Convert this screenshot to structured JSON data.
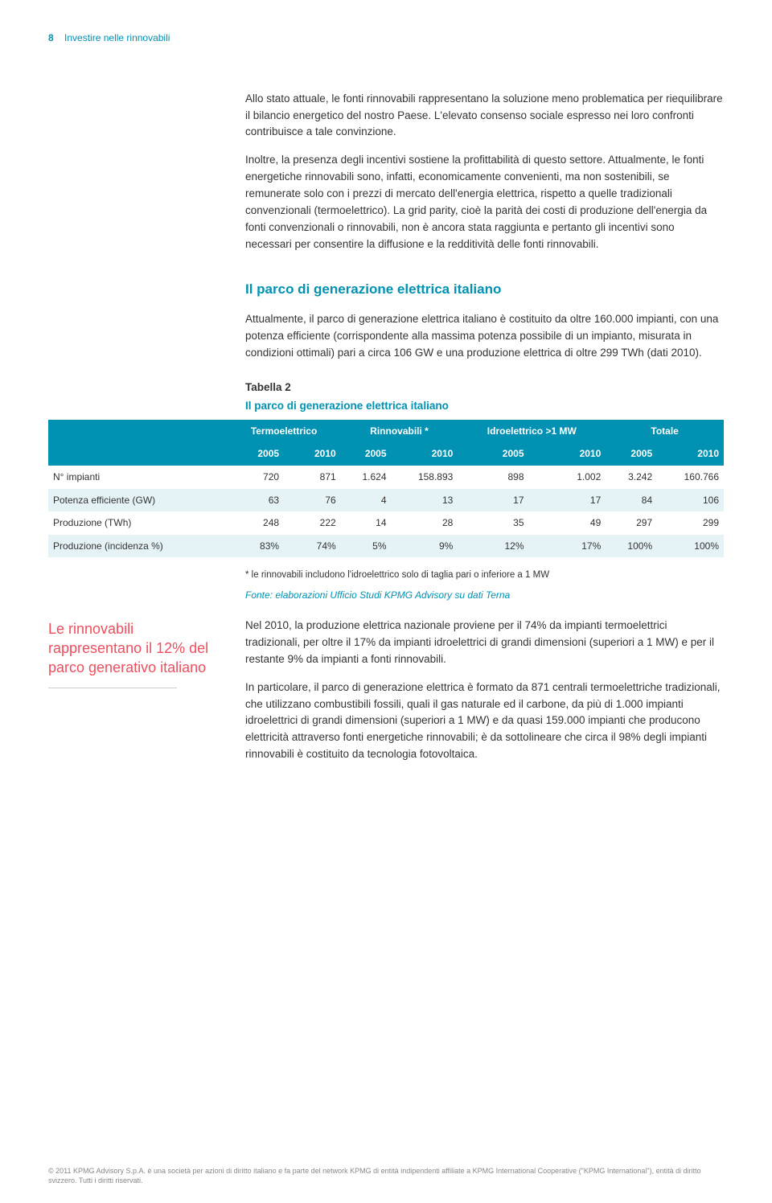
{
  "header": {
    "page_number": "8",
    "running_title": "Investire nelle rinnovabili"
  },
  "intro": {
    "p1": "Allo stato attuale, le fonti rinnovabili rappresentano la soluzione meno problematica per riequilibrare il bilancio energetico del nostro Paese. L'elevato consenso sociale espresso nei loro confronti contribuisce a tale convinzione.",
    "p2": "Inoltre, la presenza degli incentivi sostiene la profittabilità di questo settore. Attualmente, le fonti energetiche rinnovabili sono, infatti, economicamente convenienti, ma non sostenibili, se remunerate solo con i prezzi di mercato dell'energia elettrica, rispetto a quelle tradizionali convenzionali (termoelettrico). La grid parity, cioè la parità dei costi di produzione dell'energia da fonti convenzionali o rinnovabili, non è ancora stata raggiunta e pertanto gli incentivi sono necessari per consentire la diffusione e la redditività delle fonti rinnovabili."
  },
  "section": {
    "heading": "Il parco di generazione elettrica italiano",
    "p1": "Attualmente, il parco di generazione elettrica italiano è costituito da oltre 160.000 impianti, con una potenza efficiente (corrispondente alla massima potenza possibile di un impianto, misurata in condizioni ottimali) pari a circa 106 GW e una produzione elettrica di oltre 299 TWh (dati 2010)."
  },
  "table": {
    "caption_label": "Tabella 2",
    "caption_title": "Il parco di generazione elettrica italiano",
    "group_headers": [
      "Termoelettrico",
      "Rinnovabili *",
      "Idroelettrico >1 MW",
      "Totale"
    ],
    "sub_headers": [
      "2005",
      "2010",
      "2005",
      "2010",
      "2005",
      "2010",
      "2005",
      "2010"
    ],
    "rows": [
      {
        "label": "N° impianti",
        "cells": [
          "720",
          "871",
          "1.624",
          "158.893",
          "898",
          "1.002",
          "3.242",
          "160.766"
        ],
        "tint": false
      },
      {
        "label": "Potenza efficiente (GW)",
        "cells": [
          "63",
          "76",
          "4",
          "13",
          "17",
          "17",
          "84",
          "106"
        ],
        "tint": true
      },
      {
        "label": "Produzione (TWh)",
        "cells": [
          "248",
          "222",
          "14",
          "28",
          "35",
          "49",
          "297",
          "299"
        ],
        "tint": false
      },
      {
        "label": "Produzione (incidenza %)",
        "cells": [
          "83%",
          "74%",
          "5%",
          "9%",
          "12%",
          "17%",
          "100%",
          "100%"
        ],
        "tint": true
      }
    ],
    "footnote": "* le rinnovabili includono l'idroelettrico solo di taglia pari o inferiore a 1 MW",
    "source": "Fonte: elaborazioni Ufficio Studi KPMG Advisory su dati Terna",
    "colors": {
      "header_bg": "#0091b3",
      "header_text": "#ffffff",
      "tint_bg": "#e6f3f6"
    }
  },
  "callout": {
    "text": "Le rinnovabili rappresentano il 12% del parco generativo italiano"
  },
  "body2": {
    "p1": "Nel 2010, la produzione elettrica nazionale proviene per il 74% da impianti termoelettrici tradizionali, per oltre il 17% da impianti idroelettrici di grandi dimensioni (superiori a 1 MW) e per il restante 9% da impianti a fonti rinnovabili.",
    "p2": "In particolare, il parco di generazione elettrica è formato da 871 centrali termoelettriche tradizionali, che utilizzano combustibili fossili, quali il gas naturale ed il carbone, da più di 1.000 impianti idroelettrici di grandi dimensioni (superiori a 1 MW) e da quasi 159.000 impianti che producono elettricità attraverso fonti energetiche rinnovabili; è da sottolineare che circa il 98% degli impianti rinnovabili è costituito da tecnologia fotovoltaica."
  },
  "footer": {
    "text": "© 2011 KPMG Advisory S.p.A. è una società per azioni di diritto italiano e fa parte del network KPMG di entità indipendenti affiliate a KPMG International Cooperative (\"KPMG International\"), entità di diritto svizzero. Tutti i diritti riservati."
  }
}
